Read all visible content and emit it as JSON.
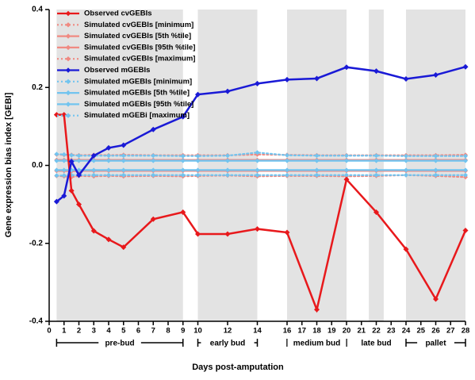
{
  "chart_data": {
    "type": "line",
    "ylabel": "Gene expression bias index [GEBI]",
    "xlabel": "Days post-amputation",
    "xlim": [
      0,
      28
    ],
    "ylim": [
      -0.4,
      0.4
    ],
    "xticks": [
      0,
      1,
      2,
      3,
      4,
      5,
      6,
      7,
      8,
      9,
      10,
      12,
      14,
      16,
      17,
      18,
      19,
      20,
      21,
      22,
      23,
      24,
      25,
      26,
      27,
      28
    ],
    "yticks": [
      -0.4,
      -0.2,
      {
        "value": 0,
        "label": "0.0"
      },
      0.2,
      0.4
    ],
    "x": [
      0.5,
      1,
      1.5,
      2,
      3,
      4,
      5,
      7,
      9,
      10,
      12,
      14,
      16,
      18,
      20,
      22,
      24,
      26,
      28
    ],
    "stages": [
      {
        "label": "pre-bud",
        "start": 0.5,
        "end": 9
      },
      {
        "label": "early bud",
        "start": 10,
        "end": 14
      },
      {
        "label": "medium bud",
        "start": 16,
        "end": 20
      },
      {
        "label": "late bud",
        "start": 21.5,
        "end": 22.5
      },
      {
        "label": "pallet",
        "start": 24,
        "end": 28
      }
    ],
    "series": [
      {
        "name": "Observed cvGEBIs",
        "color": "#e8191c",
        "dash": false,
        "values": [
          0.13,
          0.13,
          -0.065,
          -0.1,
          -0.168,
          -0.19,
          -0.21,
          -0.138,
          -0.12,
          -0.176,
          -0.176,
          -0.163,
          -0.172,
          -0.37,
          -0.036,
          -0.12,
          -0.215,
          -0.343,
          -0.167
        ]
      },
      {
        "name": "Simulated cvGEBIs [minimum]",
        "color": "#f08a82",
        "dash": true,
        "values": [
          -0.027,
          -0.028,
          -0.03,
          -0.027,
          -0.028,
          -0.027,
          -0.028,
          -0.027,
          -0.028,
          -0.027,
          -0.026,
          -0.028,
          -0.027,
          -0.027,
          -0.028,
          -0.027,
          -0.025,
          -0.027,
          -0.03
        ]
      },
      {
        "name": "Simulated cvGEBIs [5th %tile]",
        "color": "#f08a82",
        "dash": false,
        "values": [
          -0.014,
          -0.014,
          -0.015,
          -0.014,
          -0.014,
          -0.014,
          -0.014,
          -0.014,
          -0.014,
          -0.014,
          -0.014,
          -0.014,
          -0.014,
          -0.014,
          -0.014,
          -0.014,
          -0.014,
          -0.014,
          -0.014
        ]
      },
      {
        "name": "Simulated cvGEBIs [95th %tile]",
        "color": "#f08a82",
        "dash": false,
        "values": [
          0.014,
          0.014,
          0.014,
          0.014,
          0.014,
          0.014,
          0.014,
          0.014,
          0.014,
          0.014,
          0.014,
          0.014,
          0.014,
          0.014,
          0.014,
          0.014,
          0.014,
          0.014,
          0.014
        ]
      },
      {
        "name": "Simulated cvGEBIs [maximum]",
        "color": "#f08a82",
        "dash": true,
        "values": [
          0.028,
          0.027,
          0.027,
          0.026,
          0.027,
          0.026,
          0.027,
          0.026,
          0.026,
          0.026,
          0.026,
          0.028,
          0.027,
          0.026,
          0.026,
          0.026,
          0.026,
          0.026,
          0.027
        ]
      },
      {
        "name": "Observed mGEBIs",
        "color": "#1a1ad6",
        "dash": false,
        "values": [
          -0.093,
          -0.078,
          0.01,
          -0.025,
          0.025,
          0.045,
          0.052,
          0.092,
          0.125,
          0.182,
          0.19,
          0.21,
          0.22,
          0.223,
          0.252,
          0.242,
          0.222,
          0.232,
          0.253
        ]
      },
      {
        "name": "Simulated mGEBIs [minimum]",
        "color": "#72c4ef",
        "dash": true,
        "values": [
          -0.026,
          -0.026,
          -0.025,
          -0.025,
          -0.025,
          -0.025,
          -0.025,
          -0.025,
          -0.025,
          -0.025,
          -0.025,
          -0.025,
          -0.025,
          -0.025,
          -0.025,
          -0.025,
          -0.025,
          -0.025,
          -0.025
        ]
      },
      {
        "name": "Simulated mGEBIs [5th %tile]",
        "color": "#72c4ef",
        "dash": false,
        "values": [
          -0.012,
          -0.012,
          -0.012,
          -0.012,
          -0.012,
          -0.012,
          -0.012,
          -0.012,
          -0.012,
          -0.012,
          -0.012,
          -0.012,
          -0.012,
          -0.012,
          -0.012,
          -0.012,
          -0.012,
          -0.012,
          -0.012
        ]
      },
      {
        "name": "Simulated mGEBIs [95th %tile]",
        "color": "#72c4ef",
        "dash": false,
        "values": [
          0.012,
          0.012,
          0.012,
          0.012,
          0.012,
          0.012,
          0.012,
          0.012,
          0.012,
          0.012,
          0.012,
          0.012,
          0.012,
          0.012,
          0.012,
          0.012,
          0.012,
          0.012,
          0.012
        ]
      },
      {
        "name": "Simulated mGEBi [maximum]",
        "color": "#72c4ef",
        "dash": true,
        "values": [
          0.029,
          0.028,
          0.026,
          0.025,
          0.025,
          0.025,
          0.025,
          0.025,
          0.024,
          0.024,
          0.025,
          0.033,
          0.026,
          0.025,
          0.025,
          0.025,
          0.024,
          0.024,
          0.024
        ]
      }
    ]
  }
}
